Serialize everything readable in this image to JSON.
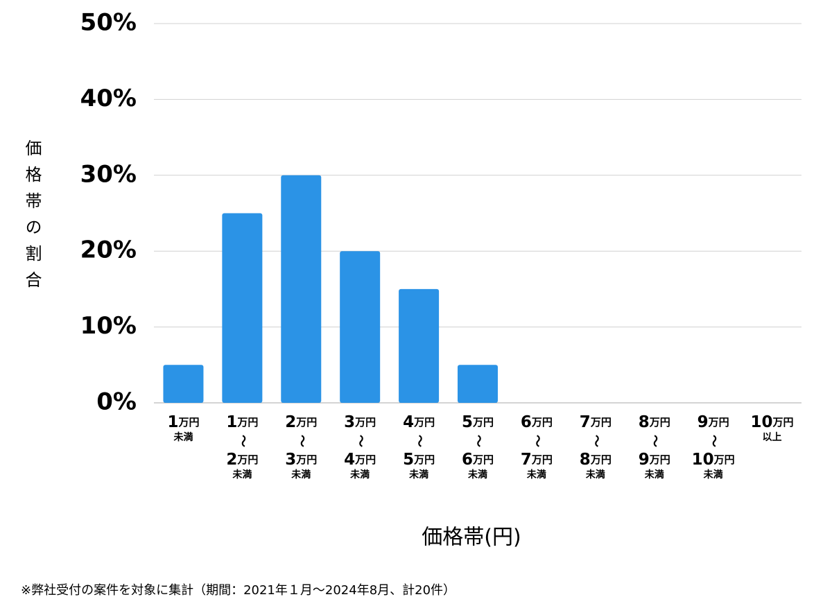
{
  "chart_data": {
    "type": "bar",
    "y_label": "価格帯の割合",
    "x_label": "価格帯(円)",
    "footnote": "※弊社受付の案件を対象に集計（期間：2021年１月〜2024年8月、計20件）",
    "categories": [
      [
        "1万円",
        "未満"
      ],
      [
        "1万円",
        "〜",
        "2万円",
        "未満"
      ],
      [
        "2万円",
        "〜",
        "3万円",
        "未満"
      ],
      [
        "3万円",
        "〜",
        "4万円",
        "未満"
      ],
      [
        "4万円",
        "〜",
        "5万円",
        "未満"
      ],
      [
        "5万円",
        "〜",
        "6万円",
        "未満"
      ],
      [
        "6万円",
        "〜",
        "7万円",
        "未満"
      ],
      [
        "7万円",
        "〜",
        "8万円",
        "未満"
      ],
      [
        "8万円",
        "〜",
        "9万円",
        "未満"
      ],
      [
        "9万円",
        "〜",
        "10万円",
        "未満"
      ],
      [
        "10万円",
        "以上"
      ]
    ],
    "values": [
      5,
      25,
      30,
      20,
      15,
      5,
      0,
      0,
      0,
      0,
      0
    ],
    "color": "#2b93e6",
    "ylim": [
      0,
      50
    ],
    "yticks": [
      {
        "value": 0,
        "label": "0%"
      },
      {
        "value": 10,
        "label": "10%"
      },
      {
        "value": 20,
        "label": "20%"
      },
      {
        "value": 30,
        "label": "30%"
      },
      {
        "value": 40,
        "label": "40%"
      },
      {
        "value": 50,
        "label": "50%"
      }
    ],
    "grid": true
  }
}
